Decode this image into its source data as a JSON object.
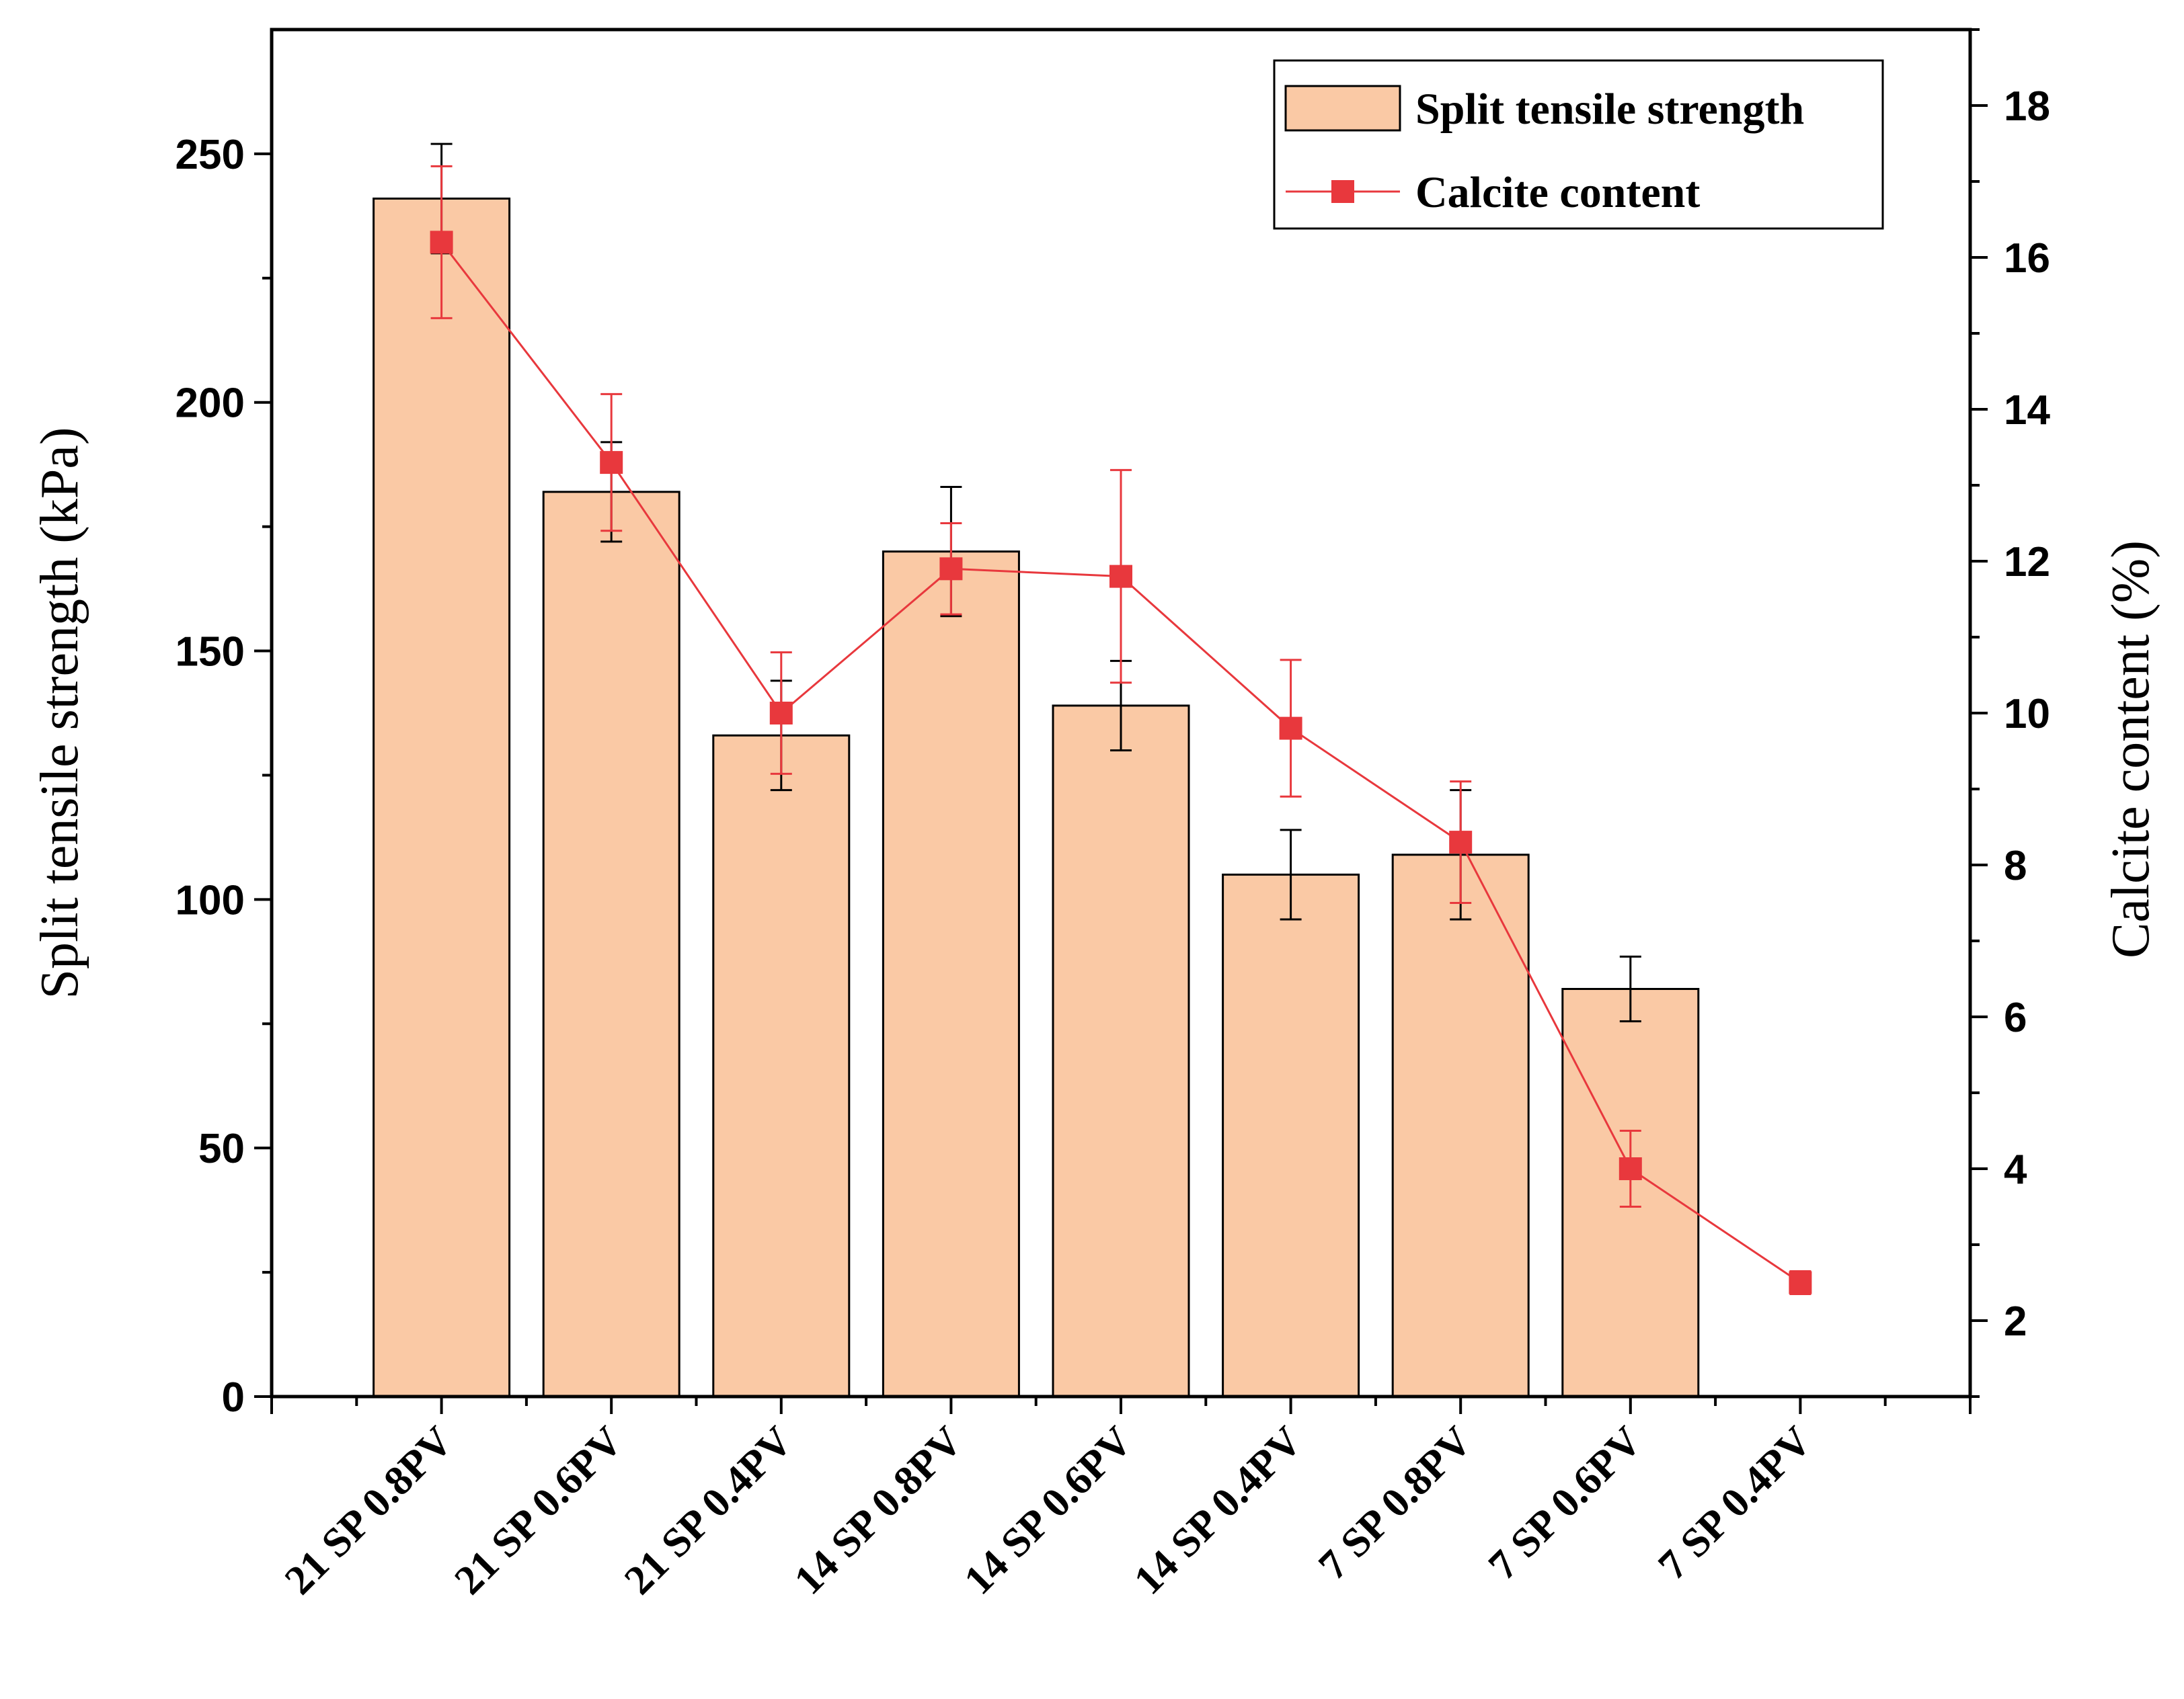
{
  "chart_data": {
    "type": "bar",
    "categories": [
      "21 SP 0.8PV",
      "21 SP 0.6PV",
      "21 SP 0.4PV",
      "14 SP 0.8PV",
      "14 SP 0.6PV",
      "14 SP 0.4PV",
      "7 SP 0.8PV",
      "7 SP 0.6PV",
      "7 SP 0.4PV"
    ],
    "ylabel": "Split tensile strength (kPa)",
    "y2label": "Calcite content (%)",
    "ylim": [
      0,
      275
    ],
    "y2lim": [
      1,
      19
    ],
    "yticks": [
      0,
      50,
      100,
      150,
      200,
      250
    ],
    "y2ticks": [
      2,
      4,
      6,
      8,
      10,
      12,
      14,
      16,
      18
    ],
    "grid": false,
    "legend_position": "top-right",
    "series": [
      {
        "name": "Split tensile strength",
        "type": "bar",
        "axis": "left",
        "color": "#FAC9A5",
        "values": [
          241,
          182,
          133,
          170,
          139,
          105,
          109,
          82,
          null
        ],
        "errors": [
          11,
          10,
          11,
          13,
          9,
          9,
          13,
          6.5,
          null
        ]
      },
      {
        "name": "Calcite content",
        "type": "line",
        "axis": "right",
        "color": "#E8383D",
        "values": [
          16.2,
          13.3,
          10.0,
          11.9,
          11.8,
          9.8,
          8.3,
          4.0,
          2.5
        ],
        "errors": [
          1.0,
          0.9,
          0.8,
          0.6,
          1.4,
          0.9,
          0.8,
          0.5,
          0.15
        ]
      }
    ]
  }
}
